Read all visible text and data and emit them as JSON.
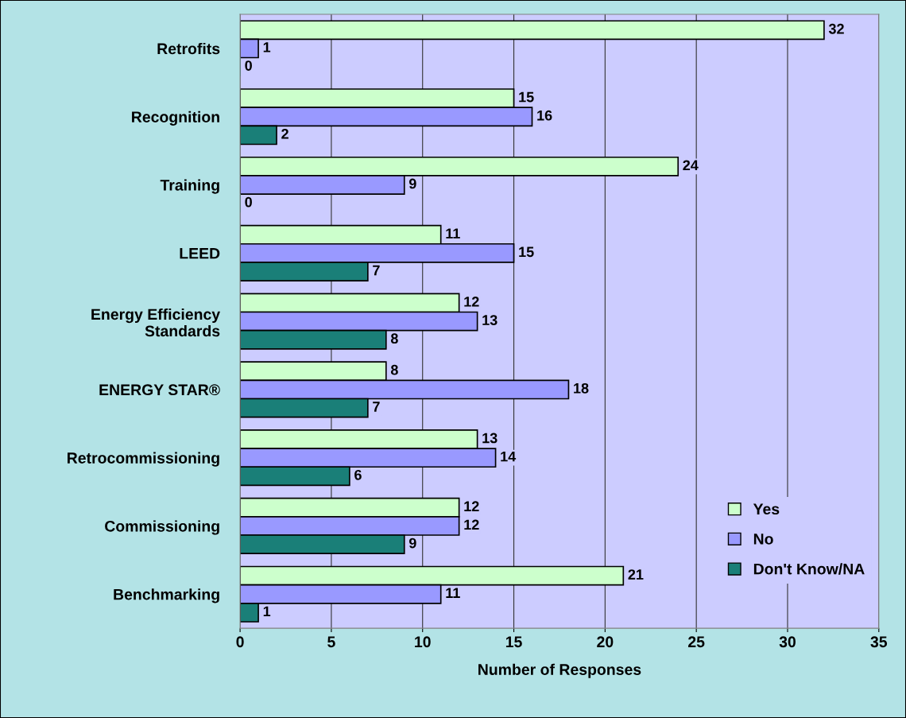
{
  "chart_data": {
    "type": "bar",
    "orientation": "horizontal",
    "xlabel": "Number of Responses",
    "categories": [
      "Retrofits",
      "Recognition",
      "Training",
      "LEED",
      "Energy Efficiency\nStandards",
      "ENERGY STAR®",
      "Retrocommissioning",
      "Commissioning",
      "Benchmarking"
    ],
    "series": [
      {
        "name": "Yes",
        "color": "#ccffcc",
        "values": [
          32,
          15,
          24,
          11,
          12,
          8,
          13,
          12,
          21
        ]
      },
      {
        "name": "No",
        "color": "#9999ff",
        "values": [
          1,
          16,
          9,
          15,
          13,
          18,
          14,
          12,
          11
        ]
      },
      {
        "name": "Don't Know/NA",
        "color": "#1a7f78",
        "values": [
          0,
          2,
          0,
          7,
          8,
          7,
          6,
          9,
          1
        ]
      }
    ],
    "xlim": [
      0,
      35
    ],
    "xticks": [
      0,
      5,
      10,
      15,
      20,
      25,
      30,
      35
    ],
    "grid": "x",
    "legend": "bottom right",
    "data_labels": true
  }
}
